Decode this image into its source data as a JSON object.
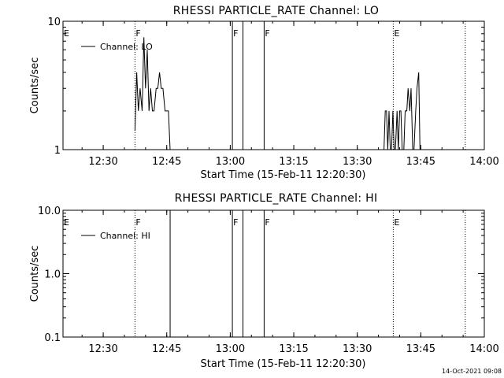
{
  "chart_data": [
    {
      "type": "line",
      "title": "RHESSI PARTICLE_RATE Channel: LO",
      "xlabel": "Start Time (15-Feb-11 12:20:30)",
      "ylabel": "Counts/sec",
      "yscale": "log",
      "ylim": [
        1,
        10
      ],
      "ytick_labels": [
        "1",
        "10"
      ],
      "xlim_minutes": [
        0,
        99.5
      ],
      "xtick_labels": [
        "12:30",
        "12:45",
        "13:00",
        "13:15",
        "13:30",
        "13:45",
        "14:00"
      ],
      "legend": "Channel: LO",
      "legend_placement": "top-left",
      "event_markers": [
        {
          "label": "E",
          "t": 0,
          "style": "none"
        },
        {
          "label": "F",
          "t": 17,
          "style": "dotted"
        },
        {
          "label": "F",
          "t": 40,
          "style": "solid"
        },
        {
          "label": "F",
          "t": 47.5,
          "style": "solid"
        },
        {
          "label": "E",
          "t": 78,
          "style": "dotted"
        }
      ],
      "extra_lines": [
        {
          "t": 42.5,
          "style": "solid"
        },
        {
          "t": 95,
          "style": "dotted"
        }
      ],
      "series": [
        {
          "name": "Channel: LO",
          "points": [
            [
              17.0,
              1.4
            ],
            [
              17.4,
              4.0
            ],
            [
              17.8,
              2.0
            ],
            [
              18.2,
              3.0
            ],
            [
              18.7,
              2.0
            ],
            [
              19.1,
              7.5
            ],
            [
              19.5,
              3.0
            ],
            [
              19.9,
              6.0
            ],
            [
              20.3,
              2.0
            ],
            [
              20.7,
              3.0
            ],
            [
              21.1,
              2.0
            ],
            [
              21.5,
              2.0
            ],
            [
              22.0,
              3.0
            ],
            [
              22.4,
              3.0
            ],
            [
              22.8,
              4.0
            ],
            [
              23.2,
              3.0
            ],
            [
              23.6,
              3.0
            ],
            [
              24.1,
              2.0
            ],
            [
              24.5,
              2.0
            ],
            [
              24.9,
              2.0
            ],
            [
              25.3,
              1.0
            ],
            [
              75.8,
              1.0
            ],
            [
              76.1,
              2.0
            ],
            [
              76.4,
              2.0
            ],
            [
              76.7,
              1.0
            ],
            [
              77.0,
              2.0
            ],
            [
              77.3,
              1.0
            ],
            [
              77.6,
              1.0
            ],
            [
              77.9,
              2.0
            ],
            [
              78.2,
              1.0
            ],
            [
              78.5,
              1.0
            ],
            [
              78.9,
              2.0
            ],
            [
              79.2,
              1.0
            ],
            [
              79.5,
              2.0
            ],
            [
              79.8,
              2.0
            ],
            [
              80.1,
              1.0
            ],
            [
              80.5,
              1.0
            ],
            [
              80.8,
              2.0
            ],
            [
              81.2,
              2.0
            ],
            [
              81.5,
              3.0
            ],
            [
              81.9,
              2.0
            ],
            [
              82.2,
              3.0
            ],
            [
              82.6,
              1.0
            ],
            [
              82.9,
              1.0
            ],
            [
              83.3,
              2.0
            ],
            [
              83.6,
              3.0
            ],
            [
              84.0,
              4.0
            ],
            [
              84.3,
              1.0
            ]
          ]
        }
      ]
    },
    {
      "type": "line",
      "title": "RHESSI PARTICLE_RATE Channel: HI",
      "xlabel": "Start Time (15-Feb-11 12:20:30)",
      "ylabel": "Counts/sec",
      "yscale": "log",
      "ylim": [
        0.1,
        10
      ],
      "ytick_labels": [
        "0.1",
        "1.0",
        "10.0"
      ],
      "xlim_minutes": [
        0,
        99.5
      ],
      "xtick_labels": [
        "12:30",
        "12:45",
        "13:00",
        "13:15",
        "13:30",
        "13:45",
        "14:00"
      ],
      "legend": "Channel: HI",
      "legend_placement": "top-left",
      "event_markers": [
        {
          "label": "E",
          "t": 0,
          "style": "none"
        },
        {
          "label": "F",
          "t": 17,
          "style": "dotted"
        },
        {
          "label": "F",
          "t": 40,
          "style": "solid"
        },
        {
          "label": "F",
          "t": 47.5,
          "style": "solid"
        },
        {
          "label": "E",
          "t": 78,
          "style": "dotted"
        }
      ],
      "extra_lines": [
        {
          "t": 25.3,
          "style": "solid"
        },
        {
          "t": 42.5,
          "style": "solid"
        },
        {
          "t": 95,
          "style": "dotted"
        }
      ],
      "series": [
        {
          "name": "Channel: HI",
          "points": []
        }
      ]
    }
  ],
  "footer": {
    "timestamp": "14-Oct-2021 09:08"
  }
}
